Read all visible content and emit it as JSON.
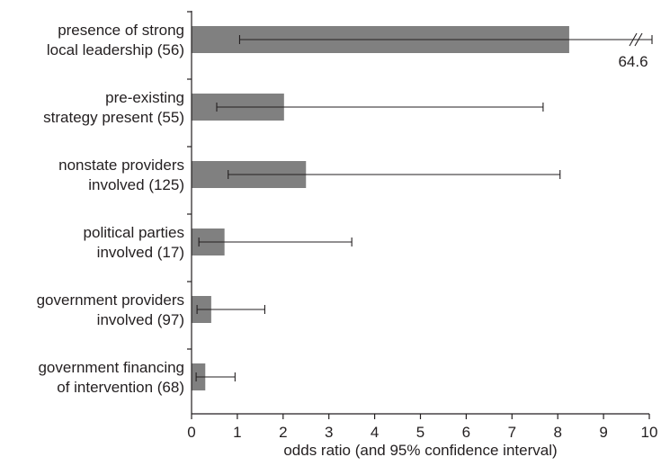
{
  "chart_data": {
    "type": "bar",
    "orientation": "horizontal",
    "title": "",
    "xlabel": "odds ratio (and 95% confidence interval)",
    "ylabel": "",
    "xlim": [
      0,
      10
    ],
    "xticks": [
      "0",
      "1",
      "2",
      "3",
      "4",
      "5",
      "6",
      "7",
      "8",
      "9",
      "10"
    ],
    "grid": false,
    "legend": "none",
    "bar_color": "#808080",
    "categories": [
      [
        "presence of strong",
        "local leadership (56)"
      ],
      [
        "pre-existing",
        "strategy present (55)"
      ],
      [
        "nonstate providers",
        "involved (125)"
      ],
      [
        "political parties",
        "involved (17)"
      ],
      [
        "government providers",
        "involved (97)"
      ],
      [
        "government financing",
        "of intervention (68)"
      ]
    ],
    "values": [
      8.25,
      2.02,
      2.5,
      0.72,
      0.43,
      0.3
    ],
    "ci_lower": [
      1.05,
      0.55,
      0.8,
      0.16,
      0.12,
      0.1
    ],
    "ci_upper": [
      64.6,
      7.68,
      8.05,
      3.5,
      1.6,
      0.95
    ],
    "axis_break": {
      "category_index": 0,
      "label": "64.6"
    }
  }
}
